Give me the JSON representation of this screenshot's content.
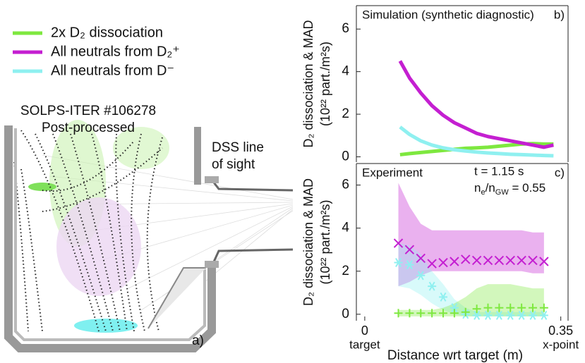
{
  "diagram": {
    "title": "SOLPS-ITER #106278",
    "subtitle": "Post-processed",
    "los_label": [
      "DSS line",
      "of sight"
    ],
    "panel_label": "a)"
  },
  "chart_data": [
    {
      "type": "line",
      "panel_label": "b)",
      "annotation": "Simulation (synthetic diagnostic)",
      "ylabel": "D₂ dissociation & MAD",
      "ylabel_unit": "(10²² part./m²s)",
      "xlim": [
        -0.015,
        0.363
      ],
      "ylim": [
        -0.25,
        7.1
      ],
      "yticks": [
        0,
        2,
        4,
        6
      ],
      "x": [
        0.063,
        0.08,
        0.1,
        0.12,
        0.14,
        0.16,
        0.18,
        0.2,
        0.22,
        0.24,
        0.26,
        0.28,
        0.3,
        0.32,
        0.337
      ],
      "series": [
        {
          "name": "2x D₂ dissociation",
          "color": "#7ee83f",
          "values": [
            0.1,
            0.15,
            0.2,
            0.25,
            0.3,
            0.35,
            0.4,
            0.42,
            0.45,
            0.5,
            0.55,
            0.6,
            0.62,
            0.6,
            0.6
          ]
        },
        {
          "name": "All neutrals from D₂⁺",
          "color": "#c41fd1",
          "values": [
            4.5,
            3.7,
            3.0,
            2.4,
            1.95,
            1.6,
            1.35,
            1.1,
            0.95,
            0.85,
            0.75,
            0.65,
            0.55,
            0.45,
            0.55
          ]
        },
        {
          "name": "All neutrals from D⁻",
          "color": "#8ff0f0",
          "values": [
            1.4,
            1.05,
            0.75,
            0.55,
            0.42,
            0.33,
            0.27,
            0.22,
            0.18,
            0.15,
            0.12,
            0.1,
            0.08,
            0.06,
            0.05
          ]
        }
      ]
    },
    {
      "type": "scatter",
      "panel_label": "c)",
      "annotation": "Experiment",
      "time": "t = 1.15 s",
      "density": [
        "n",
        "e",
        "/n",
        "GW",
        " = 0.55"
      ],
      "ylabel": "D₂ dissociation & MAD",
      "ylabel_unit": "(10²² part./m²s)",
      "xlabel": "Distance wrt target (m)",
      "xlim": [
        -0.015,
        0.363
      ],
      "ylim": [
        -0.3,
        7.0
      ],
      "yticks": [
        0,
        2,
        4,
        6
      ],
      "xticks": [
        0,
        0.35
      ],
      "xtick_sublabels": [
        "target",
        "x-point"
      ],
      "x": [
        0.06,
        0.08,
        0.1,
        0.12,
        0.14,
        0.16,
        0.18,
        0.2,
        0.22,
        0.24,
        0.26,
        0.28,
        0.3,
        0.32
      ],
      "series": [
        {
          "color": "#c41fd1",
          "marker": "x",
          "values": [
            3.3,
            3.0,
            2.6,
            2.35,
            2.4,
            2.45,
            2.55,
            2.5,
            2.5,
            2.5,
            2.5,
            2.5,
            2.5,
            2.45
          ],
          "band_low": [
            1.3,
            1.5,
            1.8,
            2.0,
            2.0,
            2.0,
            2.0,
            2.0,
            2.0,
            2.0,
            2.0,
            2.0,
            1.9,
            1.9
          ],
          "band_high": [
            6.1,
            5.0,
            4.2,
            3.9,
            3.9,
            3.9,
            3.9,
            3.9,
            3.9,
            3.9,
            3.9,
            3.9,
            3.8,
            3.8
          ]
        },
        {
          "color": "#8ff0f0",
          "marker": "*",
          "values": [
            2.4,
            2.3,
            1.8,
            1.3,
            0.8,
            0.3,
            0.0,
            -0.05,
            -0.05,
            -0.05,
            -0.05,
            -0.05,
            -0.05,
            -0.05
          ],
          "band_low": [
            1.3,
            1.2,
            0.9,
            0.5,
            0.2,
            0,
            -0.1,
            -0.1,
            -0.1,
            -0.1,
            -0.1,
            -0.1,
            -0.1,
            -0.1
          ],
          "band_high": [
            3.3,
            3.2,
            2.8,
            2.0,
            1.4,
            0.7,
            0.3,
            0.1,
            0.1,
            0.1,
            0.1,
            0.1,
            0.1,
            0.1
          ]
        },
        {
          "color": "#7ee83f",
          "marker": "+",
          "values": [
            0.05,
            0.05,
            0.05,
            0.05,
            0.05,
            0.05,
            0.1,
            0.25,
            0.3,
            0.3,
            0.3,
            0.3,
            0.3,
            0.3
          ],
          "band_low": [
            -0.1,
            -0.1,
            -0.1,
            -0.1,
            -0.1,
            -0.1,
            -0.1,
            -0.1,
            -0.1,
            -0.1,
            -0.1,
            -0.1,
            -0.1,
            -0.1
          ],
          "band_high": [
            0.2,
            0.2,
            0.2,
            0.2,
            0.3,
            0.5,
            0.8,
            1.2,
            1.4,
            1.4,
            1.4,
            1.3,
            1.2,
            1.2
          ]
        }
      ]
    }
  ]
}
